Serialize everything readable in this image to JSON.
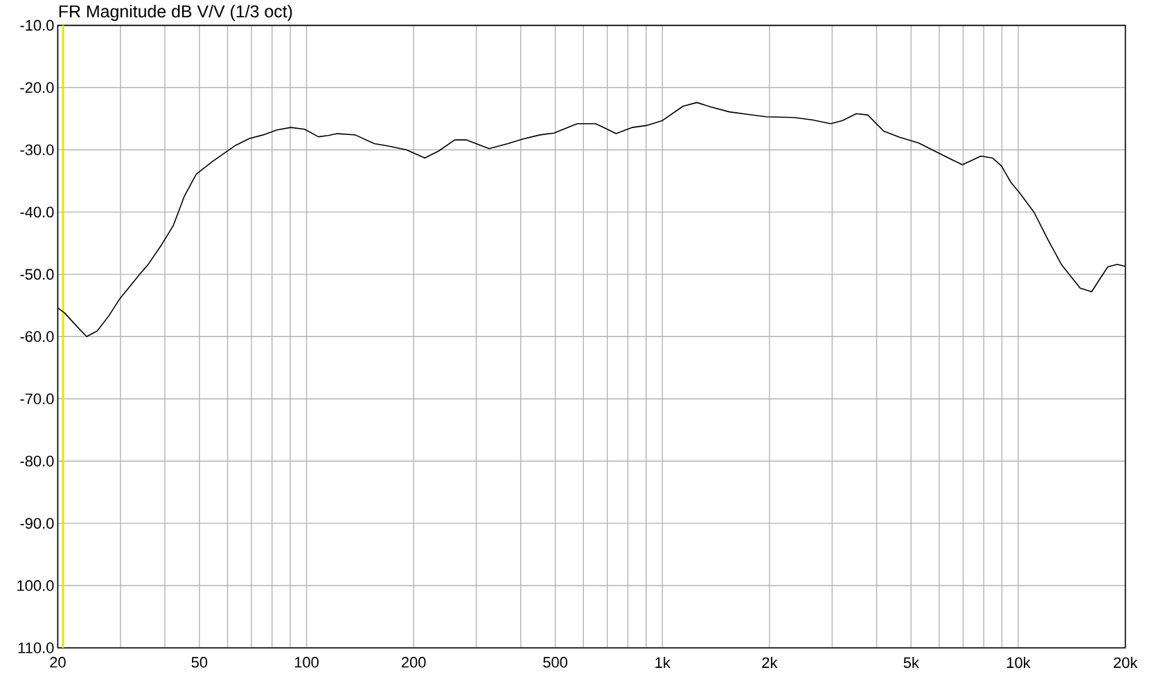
{
  "chart_data": {
    "type": "line",
    "title": "FR Magnitude dB V/V (1/3 oct)",
    "x": [
      20,
      20.9,
      22.5,
      24.1,
      25.8,
      27.8,
      29.9,
      34.2,
      35.8,
      39.2,
      42.2,
      45.4,
      49,
      54.3,
      63.1,
      69,
      75.5,
      82.6,
      90.3,
      98.8,
      108,
      115,
      122,
      137,
      155,
      170,
      191,
      215,
      235,
      261,
      281,
      326,
      368,
      403,
      453,
      496,
      576,
      649,
      689,
      741,
      824,
      901,
      1000,
      1143,
      1250,
      1368,
      1542,
      1738,
      1959,
      2342,
      2642,
      2973,
      3206,
      3507,
      3779,
      4190,
      4655,
      5247,
      5915,
      6471,
      6970,
      7400,
      7854,
      8460,
      8975,
      9530,
      10120,
      11070,
      12110,
      13250,
      14930,
      16080,
      16800,
      17860,
      18970,
      20000
    ],
    "series": [
      {
        "color": "#000000",
        "values": [
          -55.4,
          -56.2,
          -58.2,
          -60.0,
          -59.1,
          -56.7,
          -53.9,
          -49.8,
          -48.5,
          -45.2,
          -42.2,
          -37.4,
          -33.9,
          -31.9,
          -29.3,
          -28.2,
          -27.6,
          -26.8,
          -26.4,
          -26.7,
          -27.9,
          -27.7,
          -27.4,
          -27.6,
          -29.0,
          -29.4,
          -30.0,
          -31.3,
          -30.2,
          -28.4,
          -28.4,
          -29.8,
          -29.0,
          -28.3,
          -27.6,
          -27.3,
          -25.8,
          -25.8,
          -26.5,
          -27.4,
          -26.4,
          -26.1,
          -25.3,
          -23.0,
          -22.4,
          -23.1,
          -23.9,
          -24.3,
          -24.7,
          -24.8,
          -25.2,
          -25.8,
          -25.3,
          -24.2,
          -24.4,
          -27.0,
          -28.0,
          -28.9,
          -30.4,
          -31.5,
          -32.4,
          -31.7,
          -31.0,
          -31.3,
          -32.6,
          -35.2,
          -37.0,
          -40.0,
          -44.4,
          -48.5,
          -52.2,
          -52.8,
          -51.1,
          -48.8,
          -48.4,
          -48.7
        ]
      }
    ],
    "log": "x",
    "xlim": [
      20,
      20000
    ],
    "ylim": [
      -110,
      -10
    ],
    "xticks": [
      20,
      {
        "value": 30,
        "label": null
      },
      {
        "value": 40,
        "label": null
      },
      50,
      {
        "value": 60,
        "label": null
      },
      {
        "value": 70,
        "label": null
      },
      {
        "value": 80,
        "label": null
      },
      {
        "value": 90,
        "label": null
      },
      100,
      200,
      {
        "value": 300,
        "label": null
      },
      {
        "value": 400,
        "label": null
      },
      500,
      {
        "value": 600,
        "label": null
      },
      {
        "value": 700,
        "label": null
      },
      {
        "value": 800,
        "label": null
      },
      {
        "value": 900,
        "label": null
      },
      {
        "value": 1000,
        "label": "1k"
      },
      {
        "value": 2000,
        "label": "2k"
      },
      {
        "value": 3000,
        "label": null
      },
      {
        "value": 4000,
        "label": null
      },
      {
        "value": 5000,
        "label": "5k"
      },
      {
        "value": 6000,
        "label": null
      },
      {
        "value": 7000,
        "label": null
      },
      {
        "value": 8000,
        "label": null
      },
      {
        "value": 9000,
        "label": null
      },
      {
        "value": 10000,
        "label": "10k"
      },
      {
        "value": 20000,
        "label": "20k"
      }
    ],
    "yticks": [
      {
        "value": -10,
        "label": "-10.0"
      },
      {
        "value": -20,
        "label": "-20.0"
      },
      {
        "value": -30,
        "label": "-30.0"
      },
      {
        "value": -40,
        "label": "-40.0"
      },
      {
        "value": -50,
        "label": "-50.0"
      },
      {
        "value": -60,
        "label": "-60.0"
      },
      {
        "value": -70,
        "label": "-70.0"
      },
      {
        "value": -80,
        "label": "-80.0"
      },
      {
        "value": -90,
        "label": "-90.0"
      },
      {
        "value": -100,
        "label": "100.0"
      },
      {
        "value": -110,
        "label": "110.0"
      }
    ],
    "grid": true,
    "marker": "none",
    "line_style": "solid",
    "ref_lines": [
      {
        "axis": "x",
        "value": 20.7,
        "color": "#f0e000"
      }
    ]
  }
}
